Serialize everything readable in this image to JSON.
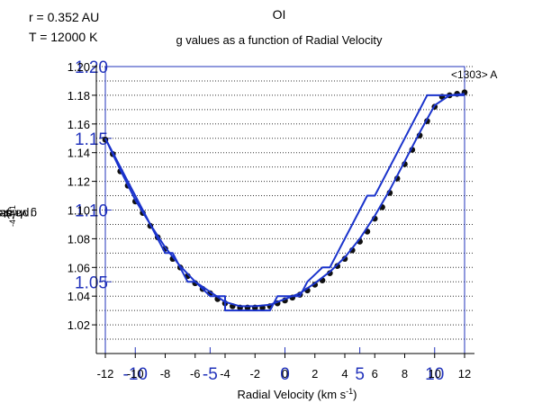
{
  "meta": {
    "r_label": "r = 0.352 AU",
    "t_label": "T = 12000 K"
  },
  "chart_data": {
    "type": "line",
    "title": "OI",
    "subtitle": "g values as a function of Radial Velocity",
    "xlabel": "Radial Velocity (km s",
    "xlabel_sup": "-1",
    "xlabel_end": ")",
    "ylabel_parts": [
      "g value (10",
      "-4",
      " ph atom",
      "-1",
      "s",
      "-1",
      ")"
    ],
    "xlim": [
      -12,
      12
    ],
    "ylim": [
      1.0,
      1.2
    ],
    "x_ticks": [
      -12,
      -10,
      -8,
      -6,
      -4,
      -2,
      0,
      2,
      4,
      6,
      8,
      10,
      12
    ],
    "x_tick_labels": [
      "-12",
      "-10",
      "-8",
      "-6",
      "-4",
      "-2",
      "0",
      "2",
      "4",
      "6",
      "8",
      "10",
      "12"
    ],
    "y_ticks": [
      1.02,
      1.04,
      1.06,
      1.08,
      1.1,
      1.12,
      1.14,
      1.16,
      1.18,
      1.2
    ],
    "y_tick_labels": [
      "1.02",
      "1.04",
      "1.06",
      "1.08",
      "1.10",
      "1.12",
      "1.14",
      "1.16",
      "1.18",
      "1.20"
    ],
    "grid": "horizontal dotted",
    "annotation": "<1303> A",
    "overlay": {
      "x_ticks": [
        -10,
        -5,
        0,
        5,
        10
      ],
      "x_tick_labels": [
        "-10",
        "-5",
        "0",
        "5",
        "10"
      ],
      "y_ticks": [
        1.05,
        1.1,
        1.15,
        1.2
      ],
      "y_tick_labels": [
        "1.05",
        "1.10",
        "1.15",
        "1.20"
      ],
      "color": "#2233bb"
    },
    "series": [
      {
        "kind": "points",
        "color": "#111111",
        "x": [
          -12,
          -11.5,
          -11,
          -10.5,
          -10,
          -9.5,
          -9,
          -8.5,
          -8,
          -7.5,
          -7,
          -6.5,
          -6,
          -5.5,
          -5,
          -4.5,
          -4,
          -3.5,
          -3,
          -2.5,
          -2,
          -1.5,
          -1,
          -0.5,
          0,
          0.5,
          1,
          1.5,
          2,
          2.5,
          3,
          3.5,
          4,
          4.5,
          5,
          5.5,
          6,
          6.5,
          7,
          7.5,
          8,
          8.5,
          9,
          9.5,
          10,
          10.5,
          11,
          11.5,
          12
        ],
        "y": [
          1.149,
          1.139,
          1.127,
          1.117,
          1.106,
          1.098,
          1.089,
          1.081,
          1.073,
          1.066,
          1.06,
          1.054,
          1.049,
          1.045,
          1.042,
          1.038,
          1.035,
          1.033,
          1.032,
          1.032,
          1.032,
          1.032,
          1.033,
          1.035,
          1.037,
          1.039,
          1.041,
          1.044,
          1.048,
          1.051,
          1.056,
          1.061,
          1.066,
          1.072,
          1.078,
          1.085,
          1.094,
          1.102,
          1.112,
          1.122,
          1.132,
          1.142,
          1.152,
          1.162,
          1.172,
          1.179,
          1.18,
          1.181,
          1.182
        ]
      },
      {
        "kind": "step-line",
        "color": "#1a33cc",
        "x": [
          -12,
          -11.5,
          -10.5,
          -9.5,
          -8.5,
          -8,
          -7.5,
          -7,
          -6.5,
          -6,
          -5,
          -4,
          -4,
          -2,
          -1,
          -0.5,
          0.5,
          1,
          1.5,
          2.5,
          3,
          3.5,
          4,
          5,
          5.5,
          6,
          7,
          8,
          9,
          9.5,
          10,
          10.5,
          12
        ],
        "y": [
          1.15,
          1.14,
          1.12,
          1.1,
          1.08,
          1.07,
          1.07,
          1.06,
          1.05,
          1.05,
          1.04,
          1.04,
          1.03,
          1.03,
          1.03,
          1.04,
          1.04,
          1.04,
          1.05,
          1.06,
          1.06,
          1.07,
          1.08,
          1.1,
          1.11,
          1.11,
          1.13,
          1.15,
          1.17,
          1.18,
          1.18,
          1.18,
          1.18
        ]
      },
      {
        "kind": "smooth-line",
        "color": "#1a33cc",
        "x": [
          -12,
          -11,
          -10,
          -9,
          -8,
          -7,
          -6,
          -5,
          -4,
          -3,
          -2,
          -1,
          0,
          1,
          2,
          3,
          4,
          5,
          6,
          7,
          8,
          9,
          10,
          11,
          12
        ],
        "y": [
          1.15,
          1.128,
          1.107,
          1.09,
          1.074,
          1.061,
          1.05,
          1.043,
          1.036,
          1.033,
          1.033,
          1.034,
          1.038,
          1.042,
          1.049,
          1.057,
          1.067,
          1.08,
          1.096,
          1.114,
          1.134,
          1.154,
          1.173,
          1.18,
          1.181
        ]
      }
    ]
  }
}
